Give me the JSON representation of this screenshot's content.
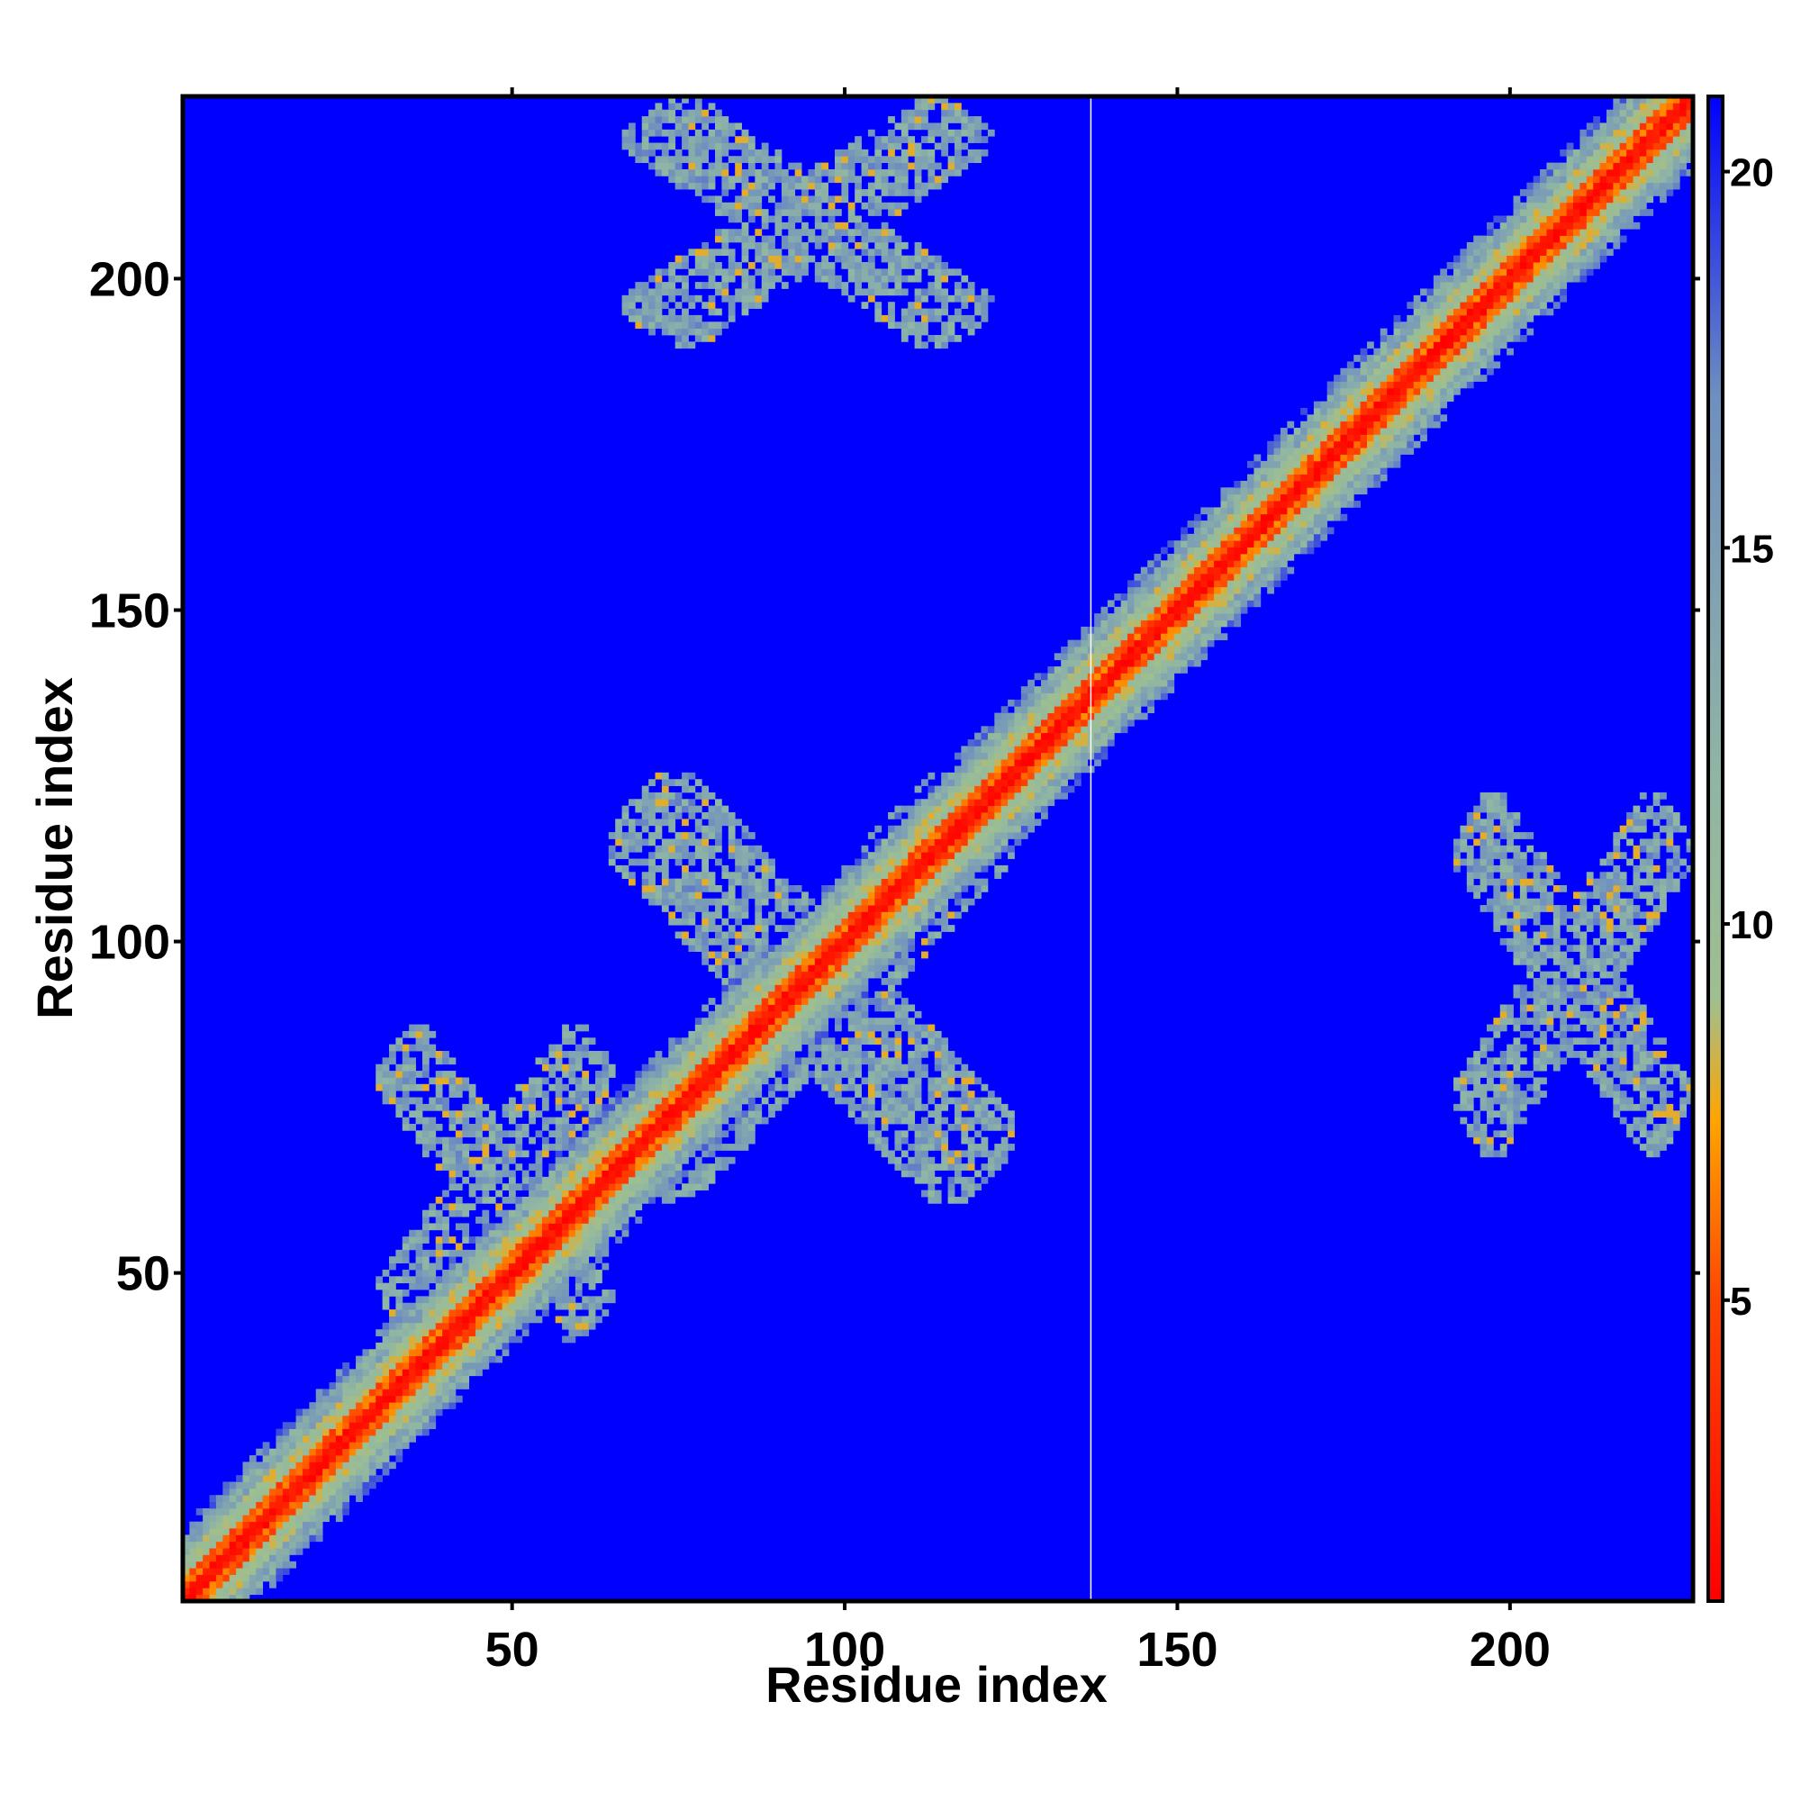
{
  "chart_data": {
    "type": "heatmap",
    "title": "",
    "xlabel": "Residue index",
    "ylabel": "Residue index",
    "xlim": [
      1,
      227
    ],
    "ylim": [
      1,
      227
    ],
    "x_ticks": [
      50,
      100,
      150,
      200
    ],
    "y_ticks": [
      50,
      100,
      150,
      200
    ],
    "colorbar": {
      "range": [
        1,
        21
      ],
      "ticks": [
        5,
        10,
        15,
        20
      ],
      "colors": [
        {
          "value": 1,
          "color": "#ff0000"
        },
        {
          "value": 5,
          "color": "#ff4500"
        },
        {
          "value": 7.5,
          "color": "#ffa500"
        },
        {
          "value": 9,
          "color": "#9fbf8f"
        },
        {
          "value": 12,
          "color": "#8fb5a5"
        },
        {
          "value": 17,
          "color": "#6f8fbf"
        },
        {
          "value": 21,
          "color": "#0000ff"
        }
      ]
    },
    "features": [
      {
        "kind": "diagonal",
        "range": [
          1,
          227
        ],
        "center_value": 1
      },
      {
        "kind": "off_diagonal_contacts",
        "x_range": [
          30,
          65
        ],
        "y_range": [
          40,
          87
        ]
      },
      {
        "kind": "off_diagonal_contacts",
        "x_range": [
          65,
          125
        ],
        "y_range": [
          61,
          125
        ]
      },
      {
        "kind": "off_diagonal_contacts",
        "x_range": [
          67,
          122
        ],
        "y_range": [
          190,
          227
        ]
      },
      {
        "kind": "off_diagonal_contacts",
        "x_range": [
          192,
          227
        ],
        "y_range": [
          68,
          122
        ]
      }
    ],
    "vline_x": 137,
    "grid": false
  }
}
